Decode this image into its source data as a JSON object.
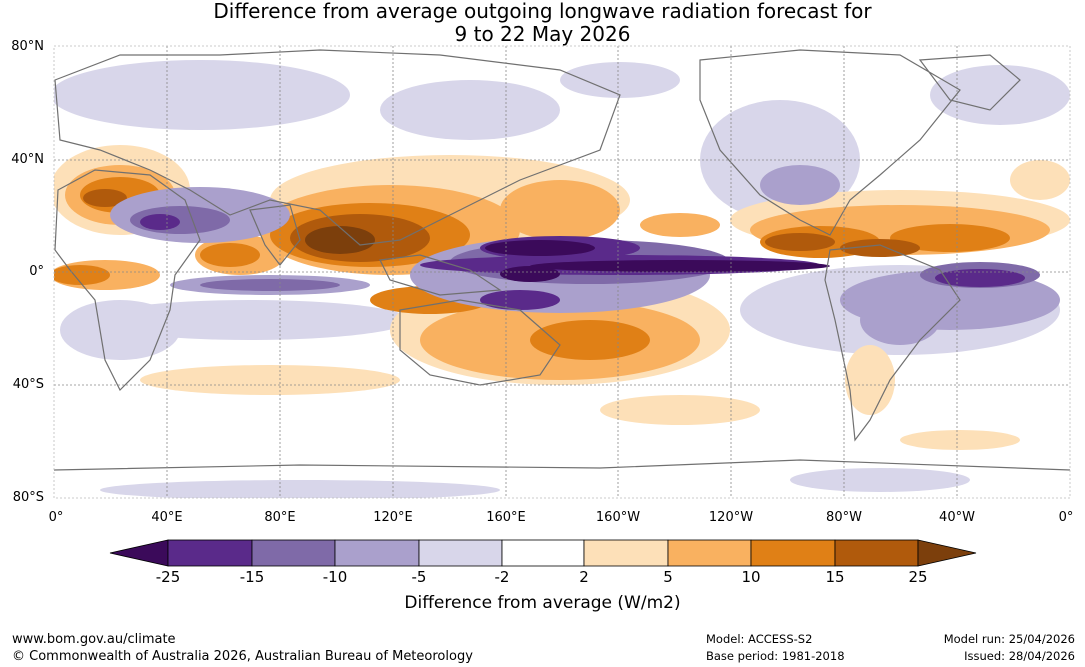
{
  "title": {
    "line1": "Difference from average outgoing longwave radiation forecast for",
    "line2": "9 to 22 May 2026"
  },
  "map": {
    "lat_labels": [
      "80°N",
      "40°N",
      "0°",
      "40°S",
      "80°S"
    ],
    "lon_labels": [
      "0°",
      "40°E",
      "80°E",
      "120°E",
      "160°E",
      "160°W",
      "120°W",
      "80°W",
      "40°W",
      "0°"
    ],
    "land_color": "#707070",
    "grid_color": "#888888"
  },
  "colorbar": {
    "title": "Difference from average (W/m2)",
    "ticks": [
      "-25",
      "-15",
      "-10",
      "-5",
      "-2",
      "2",
      "5",
      "10",
      "15",
      "25"
    ],
    "colors": [
      "#3b0a5a",
      "#5a2a8a",
      "#7f6aa8",
      "#aaa0cc",
      "#d8d6ea",
      "#ffffff",
      "#fde0b8",
      "#f9b160",
      "#e08016",
      "#b05a0c",
      "#7c3f0c"
    ]
  },
  "footer": {
    "website": "www.bom.gov.au/climate",
    "copyright": "© Commonwealth of Australia 2026, Australian Bureau of Meteorology",
    "model": "Model: ACCESS-S2",
    "base_period": "Base period: 1981-2018",
    "model_run": "Model run: 25/04/2026",
    "issued": "Issued: 28/04/2026"
  }
}
